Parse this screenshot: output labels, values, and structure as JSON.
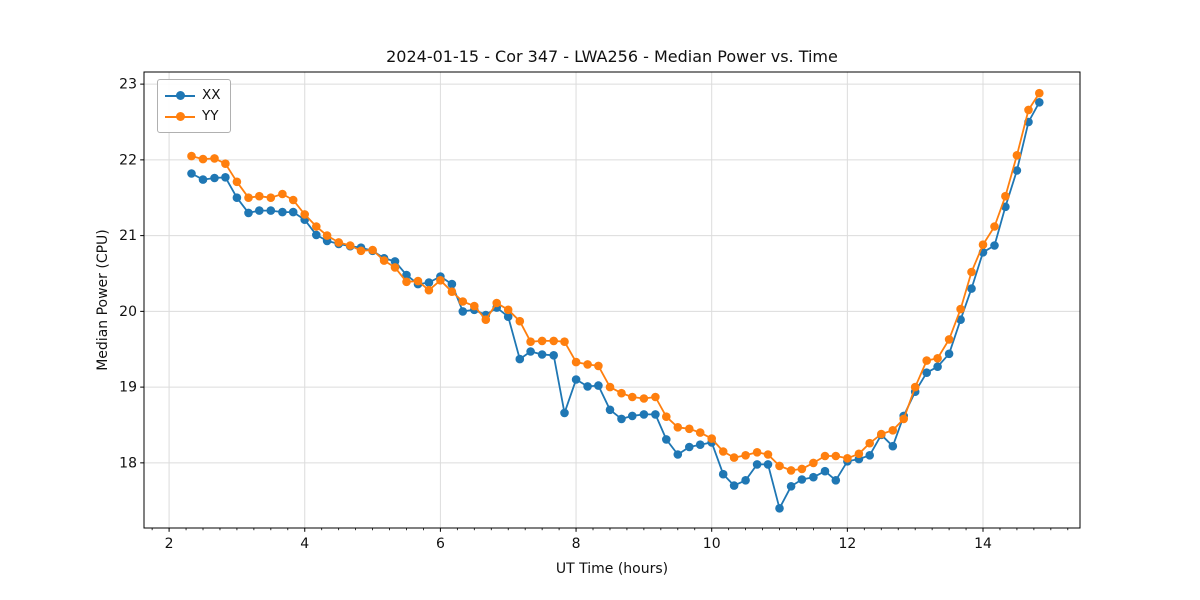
{
  "figure": {
    "title": "2024-01-15 - Cor 347 - LWA256 - Median Power vs. Time",
    "xlabel": "UT Time (hours)",
    "ylabel": "Median Power (CPU)"
  },
  "legend": {
    "items": [
      {
        "label": "XX",
        "color": "#1f77b4"
      },
      {
        "label": "YY",
        "color": "#ff7f0e"
      }
    ]
  },
  "chart_data": {
    "type": "line",
    "title": "2024-01-15 - Cor 347 - LWA256 - Median Power vs. Time",
    "xlabel": "UT Time (hours)",
    "ylabel": "Median Power (CPU)",
    "xlim": [
      1.63,
      15.43
    ],
    "ylim": [
      17.14,
      23.16
    ],
    "x_ticks": [
      2,
      4,
      6,
      8,
      10,
      12,
      14
    ],
    "y_ticks": [
      18,
      19,
      20,
      21,
      22,
      23
    ],
    "x_minor_tick_step": 0.25,
    "grid": true,
    "grid_color": "#dcdcdc",
    "legend_position": "upper left",
    "x": [
      2.33,
      2.5,
      2.67,
      2.83,
      3.0,
      3.17,
      3.33,
      3.5,
      3.67,
      3.83,
      4.0,
      4.17,
      4.33,
      4.5,
      4.67,
      4.83,
      5.0,
      5.17,
      5.33,
      5.5,
      5.67,
      5.83,
      6.0,
      6.17,
      6.33,
      6.5,
      6.67,
      6.83,
      7.0,
      7.17,
      7.33,
      7.5,
      7.67,
      7.83,
      8.0,
      8.17,
      8.33,
      8.5,
      8.67,
      8.83,
      9.0,
      9.17,
      9.33,
      9.5,
      9.67,
      9.83,
      10.0,
      10.17,
      10.33,
      10.5,
      10.67,
      10.83,
      11.0,
      11.17,
      11.33,
      11.5,
      11.67,
      11.83,
      12.0,
      12.17,
      12.33,
      12.5,
      12.67,
      12.83,
      13.0,
      13.17,
      13.33,
      13.5,
      13.67,
      13.83,
      14.0,
      14.17,
      14.33,
      14.5,
      14.67,
      14.83
    ],
    "series": [
      {
        "name": "XX",
        "color": "#1f77b4",
        "marker": "circle",
        "values": [
          21.82,
          21.74,
          21.76,
          21.77,
          21.5,
          21.3,
          21.33,
          21.33,
          21.31,
          21.31,
          21.21,
          21.01,
          20.93,
          20.89,
          20.86,
          20.84,
          20.8,
          20.7,
          20.66,
          20.48,
          20.36,
          20.38,
          20.46,
          20.36,
          20.0,
          20.02,
          19.95,
          20.05,
          19.93,
          19.37,
          19.47,
          19.43,
          19.42,
          18.66,
          19.1,
          19.01,
          19.02,
          18.7,
          18.58,
          18.62,
          18.64,
          18.64,
          18.31,
          18.11,
          18.21,
          18.24,
          18.27,
          17.85,
          17.7,
          17.77,
          17.98,
          17.98,
          17.4,
          17.69,
          17.78,
          17.81,
          17.89,
          17.77,
          18.02,
          18.05,
          18.1,
          18.37,
          18.22,
          18.62,
          18.94,
          19.19,
          19.27,
          19.44,
          19.89,
          20.3,
          20.78,
          20.87,
          21.38,
          21.86,
          22.5,
          22.76
        ]
      },
      {
        "name": "YY",
        "color": "#ff7f0e",
        "marker": "circle",
        "values": [
          22.05,
          22.01,
          22.02,
          21.95,
          21.71,
          21.5,
          21.52,
          21.5,
          21.55,
          21.47,
          21.28,
          21.12,
          21.0,
          20.91,
          20.87,
          20.8,
          20.81,
          20.67,
          20.58,
          20.39,
          20.4,
          20.28,
          20.41,
          20.26,
          20.13,
          20.07,
          19.89,
          20.11,
          20.02,
          19.87,
          19.6,
          19.61,
          19.61,
          19.6,
          19.33,
          19.3,
          19.28,
          19.0,
          18.92,
          18.87,
          18.85,
          18.87,
          18.61,
          18.47,
          18.45,
          18.4,
          18.32,
          18.15,
          18.07,
          18.1,
          18.14,
          18.11,
          17.96,
          17.9,
          17.92,
          18.0,
          18.09,
          18.09,
          18.06,
          18.12,
          18.26,
          18.38,
          18.43,
          18.58,
          19.0,
          19.35,
          19.38,
          19.63,
          20.03,
          20.52,
          20.88,
          21.12,
          21.52,
          22.06,
          22.66,
          22.88
        ]
      }
    ]
  }
}
